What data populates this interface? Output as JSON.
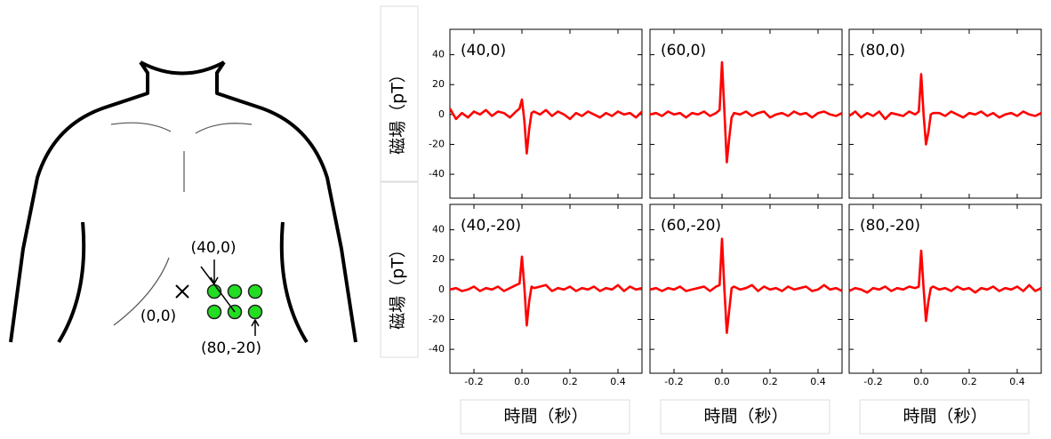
{
  "diagram": {
    "labels": [
      "(40,0)",
      "(0,0)",
      "(80,-20)"
    ]
  },
  "chart_data": [
    {
      "type": "line",
      "title": "(40,0)",
      "ylabel": "磁場（pT）",
      "color": "#ff0000",
      "xlim": [
        -0.3,
        0.5
      ],
      "ylim": [
        -56,
        57
      ],
      "xticks": [
        -0.2,
        {
          "value": 0,
          "label": "0.0"
        },
        0.2,
        0.4
      ],
      "yticks": [
        -40,
        -20,
        0,
        20,
        40
      ],
      "x": [
        -0.3,
        -0.275,
        -0.25,
        -0.225,
        -0.2,
        -0.175,
        -0.15,
        -0.125,
        -0.1,
        -0.075,
        -0.05,
        -0.025,
        -0.01,
        0,
        0.01,
        0.02,
        0.03,
        0.04,
        0.05,
        0.075,
        0.1,
        0.125,
        0.15,
        0.175,
        0.2,
        0.225,
        0.25,
        0.275,
        0.3,
        0.325,
        0.35,
        0.375,
        0.4,
        0.425,
        0.45,
        0.475,
        0.5
      ],
      "values": [
        4,
        -3,
        1,
        -2,
        2,
        0,
        3,
        -1,
        2,
        1,
        -2,
        2,
        4,
        10,
        -4,
        -26,
        -10,
        1,
        2,
        0,
        3,
        -1,
        2,
        0,
        -3,
        1,
        -1,
        2,
        0,
        -2,
        1,
        -1,
        2,
        0,
        1,
        -2,
        2
      ]
    },
    {
      "type": "line",
      "title": "(60,0)",
      "color": "#ff0000",
      "xlim": [
        -0.3,
        0.5
      ],
      "ylim": [
        -56,
        57
      ],
      "xticks": [
        -0.2,
        {
          "value": 0,
          "label": "0.0"
        },
        0.2,
        0.4
      ],
      "yticks": [
        -40,
        -20,
        0,
        20,
        40
      ],
      "x": [
        -0.3,
        -0.275,
        -0.25,
        -0.225,
        -0.2,
        -0.175,
        -0.15,
        -0.125,
        -0.1,
        -0.075,
        -0.05,
        -0.025,
        -0.01,
        0,
        0.01,
        0.02,
        0.03,
        0.04,
        0.05,
        0.075,
        0.1,
        0.125,
        0.15,
        0.175,
        0.2,
        0.225,
        0.25,
        0.275,
        0.3,
        0.325,
        0.35,
        0.375,
        0.4,
        0.425,
        0.45,
        0.475,
        0.5
      ],
      "values": [
        0,
        1,
        -1,
        2,
        0,
        1,
        -2,
        1,
        0,
        2,
        -1,
        1,
        3,
        35,
        2,
        -32,
        -16,
        -2,
        1,
        0,
        2,
        -1,
        1,
        2,
        -2,
        0,
        1,
        -1,
        2,
        0,
        1,
        -2,
        1,
        2,
        0,
        -1,
        1
      ]
    },
    {
      "type": "line",
      "title": "(80,0)",
      "color": "#ff0000",
      "xlim": [
        -0.3,
        0.5
      ],
      "ylim": [
        -56,
        57
      ],
      "xticks": [
        -0.2,
        {
          "value": 0,
          "label": "0.0"
        },
        0.2,
        0.4
      ],
      "yticks": [
        -40,
        -20,
        0,
        20,
        40
      ],
      "x": [
        -0.3,
        -0.275,
        -0.25,
        -0.225,
        -0.2,
        -0.175,
        -0.15,
        -0.125,
        -0.1,
        -0.075,
        -0.05,
        -0.025,
        -0.01,
        0,
        0.01,
        0.02,
        0.03,
        0.04,
        0.05,
        0.075,
        0.1,
        0.125,
        0.15,
        0.175,
        0.2,
        0.225,
        0.25,
        0.275,
        0.3,
        0.325,
        0.35,
        0.375,
        0.4,
        0.425,
        0.45,
        0.475,
        0.5
      ],
      "values": [
        -1,
        2,
        -2,
        1,
        -1,
        2,
        -3,
        1,
        0,
        -1,
        2,
        0,
        2,
        27,
        0,
        -20,
        -12,
        0,
        1,
        1,
        -1,
        2,
        0,
        -2,
        1,
        0,
        2,
        -1,
        1,
        -2,
        0,
        1,
        -1,
        2,
        0,
        -1,
        1
      ]
    },
    {
      "type": "line",
      "title": "(40,-20)",
      "ylabel": "磁場（pT）",
      "xlabel": "時間（秒）",
      "color": "#ff0000",
      "xlim": [
        -0.3,
        0.5
      ],
      "ylim": [
        -56,
        57
      ],
      "xticks": [
        -0.2,
        {
          "value": 0,
          "label": "0.0"
        },
        0.2,
        0.4
      ],
      "yticks": [
        -40,
        -20,
        0,
        20,
        40
      ],
      "x": [
        -0.3,
        -0.275,
        -0.25,
        -0.225,
        -0.2,
        -0.175,
        -0.15,
        -0.125,
        -0.1,
        -0.075,
        -0.05,
        -0.025,
        -0.01,
        0,
        0.01,
        0.02,
        0.03,
        0.04,
        0.05,
        0.075,
        0.1,
        0.125,
        0.15,
        0.175,
        0.2,
        0.225,
        0.25,
        0.275,
        0.3,
        0.325,
        0.35,
        0.375,
        0.4,
        0.425,
        0.45,
        0.475,
        0.5
      ],
      "values": [
        0,
        1,
        -1,
        0,
        2,
        -1,
        1,
        0,
        2,
        -1,
        1,
        3,
        4,
        22,
        2,
        -24,
        -8,
        2,
        1,
        2,
        3,
        -1,
        1,
        0,
        2,
        -1,
        1,
        0,
        2,
        -1,
        1,
        0,
        3,
        -1,
        2,
        0,
        1
      ]
    },
    {
      "type": "line",
      "title": "(60,-20)",
      "xlabel": "時間（秒）",
      "color": "#ff0000",
      "xlim": [
        -0.3,
        0.5
      ],
      "ylim": [
        -56,
        57
      ],
      "xticks": [
        -0.2,
        {
          "value": 0,
          "label": "0.0"
        },
        0.2,
        0.4
      ],
      "yticks": [
        -40,
        -20,
        0,
        20,
        40
      ],
      "x": [
        -0.3,
        -0.275,
        -0.25,
        -0.225,
        -0.2,
        -0.175,
        -0.15,
        -0.125,
        -0.1,
        -0.075,
        -0.05,
        -0.025,
        -0.01,
        0,
        0.01,
        0.02,
        0.03,
        0.04,
        0.05,
        0.075,
        0.1,
        0.125,
        0.15,
        0.175,
        0.2,
        0.225,
        0.25,
        0.275,
        0.3,
        0.325,
        0.35,
        0.375,
        0.4,
        0.425,
        0.45,
        0.475,
        0.5
      ],
      "values": [
        0,
        1,
        -1,
        1,
        0,
        2,
        -1,
        0,
        1,
        2,
        -1,
        2,
        3,
        34,
        0,
        -29,
        -14,
        1,
        2,
        0,
        1,
        3,
        -1,
        2,
        0,
        1,
        -1,
        2,
        0,
        1,
        2,
        -1,
        0,
        3,
        0,
        1,
        -1
      ]
    },
    {
      "type": "line",
      "title": "(80,-20)",
      "xlabel": "時間（秒）",
      "color": "#ff0000",
      "xlim": [
        -0.3,
        0.5
      ],
      "ylim": [
        -56,
        57
      ],
      "xticks": [
        -0.2,
        {
          "value": 0,
          "label": "0.0"
        },
        0.2,
        0.4
      ],
      "yticks": [
        -40,
        -20,
        0,
        20,
        40
      ],
      "x": [
        -0.3,
        -0.275,
        -0.25,
        -0.225,
        -0.2,
        -0.175,
        -0.15,
        -0.125,
        -0.1,
        -0.075,
        -0.05,
        -0.025,
        -0.01,
        0,
        0.01,
        0.02,
        0.03,
        0.04,
        0.05,
        0.075,
        0.1,
        0.125,
        0.15,
        0.175,
        0.2,
        0.225,
        0.25,
        0.275,
        0.3,
        0.325,
        0.35,
        0.375,
        0.4,
        0.425,
        0.45,
        0.475,
        0.5
      ],
      "values": [
        -1,
        1,
        0,
        -2,
        1,
        0,
        2,
        -1,
        1,
        0,
        2,
        1,
        2,
        26,
        1,
        -21,
        -8,
        1,
        2,
        0,
        1,
        -1,
        2,
        0,
        1,
        -2,
        1,
        0,
        2,
        -1,
        1,
        0,
        2,
        -1,
        3,
        -1,
        1
      ]
    }
  ]
}
